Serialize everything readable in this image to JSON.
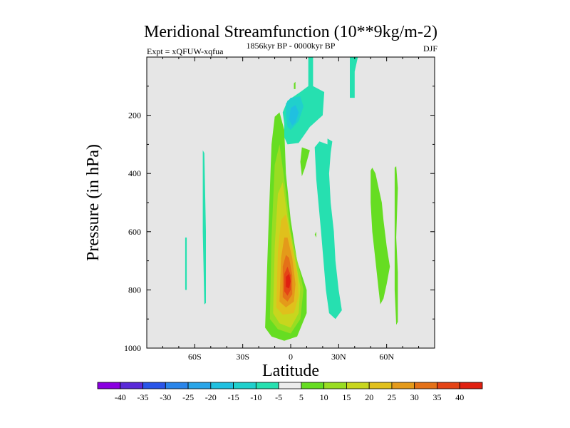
{
  "chart_data": {
    "type": "contour",
    "title": "Meridional Streamfunction (10**9kg/m-2)",
    "subtitle_left": "Expt = xQFUW-xqfua",
    "subtitle_center": "1856kyr BP - 0000kyr BP",
    "subtitle_right": "DJF",
    "xlabel": "Latitude",
    "ylabel": "Pressure (in hPa)",
    "xlim": [
      -90,
      90
    ],
    "ylim": [
      1000,
      0
    ],
    "xticks": [
      {
        "value": -60,
        "label": "60S"
      },
      {
        "value": -30,
        "label": "30S"
      },
      {
        "value": 0,
        "label": "0"
      },
      {
        "value": 30,
        "label": "30N"
      },
      {
        "value": 60,
        "label": "60N"
      }
    ],
    "yticks": [
      {
        "value": 200,
        "label": "200"
      },
      {
        "value": 400,
        "label": "400"
      },
      {
        "value": 600,
        "label": "600"
      },
      {
        "value": 800,
        "label": "800"
      },
      {
        "value": 1000,
        "label": "1000"
      }
    ],
    "background_color": "#e6e6e6",
    "colorbar": {
      "labels": [
        "-40",
        "-35",
        "-30",
        "-25",
        "-20",
        "-15",
        "-10",
        "-5",
        "5",
        "10",
        "15",
        "20",
        "25",
        "30",
        "35",
        "40"
      ],
      "colors": [
        "#8a00e0",
        "#5a2ad8",
        "#2a55e8",
        "#2a85ea",
        "#2aa5e8",
        "#20c0e0",
        "#20d0cc",
        "#26e0b0",
        "#ececec",
        "#66dd22",
        "#99dd22",
        "#c8d61e",
        "#e0c01c",
        "#e49a1a",
        "#e47118",
        "#e44416",
        "#e02010"
      ]
    },
    "regions": [
      {
        "name": "positive-tropical-cell",
        "level": 10,
        "color": "#66dd22",
        "polygon": [
          [
            -16,
            930
          ],
          [
            -14,
            600
          ],
          [
            -12,
            300
          ],
          [
            -10,
            205
          ],
          [
            -7,
            190
          ],
          [
            -4,
            250
          ],
          [
            -3,
            400
          ],
          [
            0,
            560
          ],
          [
            4,
            700
          ],
          [
            10,
            800
          ],
          [
            10,
            880
          ],
          [
            4,
            960
          ],
          [
            -4,
            975
          ],
          [
            -12,
            960
          ]
        ]
      },
      {
        "name": "positive-tropical-cell",
        "level": 15,
        "color": "#99dd22",
        "polygon": [
          [
            -13,
            900
          ],
          [
            -12,
            620
          ],
          [
            -10,
            370
          ],
          [
            -7,
            300
          ],
          [
            -4,
            420
          ],
          [
            0,
            600
          ],
          [
            5,
            720
          ],
          [
            8,
            800
          ],
          [
            6,
            900
          ],
          [
            0,
            950
          ],
          [
            -8,
            935
          ]
        ]
      },
      {
        "name": "positive-tropical-cell",
        "level": 20,
        "color": "#c8d61e",
        "polygon": [
          [
            -11,
            880
          ],
          [
            -10,
            650
          ],
          [
            -8,
            470
          ],
          [
            -5,
            430
          ],
          [
            -2,
            550
          ],
          [
            3,
            700
          ],
          [
            6,
            790
          ],
          [
            5,
            880
          ],
          [
            0,
            930
          ],
          [
            -7,
            915
          ]
        ]
      },
      {
        "name": "positive-tropical-cell",
        "level": 25,
        "color": "#e0c01c",
        "polygon": [
          [
            -9,
            860
          ],
          [
            -8,
            670
          ],
          [
            -6,
            560
          ],
          [
            -3,
            540
          ],
          [
            0,
            630
          ],
          [
            4,
            740
          ],
          [
            5,
            820
          ],
          [
            2,
            880
          ],
          [
            -5,
            885
          ]
        ]
      },
      {
        "name": "positive-tropical-cell",
        "level": 30,
        "color": "#e49a1a",
        "polygon": [
          [
            -7,
            840
          ],
          [
            -6,
            690
          ],
          [
            -4,
            620
          ],
          [
            -2,
            620
          ],
          [
            1,
            690
          ],
          [
            3,
            780
          ],
          [
            2,
            840
          ],
          [
            -3,
            860
          ]
        ]
      },
      {
        "name": "positive-tropical-cell",
        "level": 35,
        "color": "#e47118",
        "polygon": [
          [
            -5,
            825
          ],
          [
            -5,
            720
          ],
          [
            -3,
            680
          ],
          [
            -1,
            690
          ],
          [
            1,
            750
          ],
          [
            1,
            815
          ],
          [
            -2,
            840
          ]
        ]
      },
      {
        "name": "positive-tropical-cell",
        "level": 40,
        "color": "#e44416",
        "polygon": [
          [
            -4,
            805
          ],
          [
            -4,
            745
          ],
          [
            -2,
            720
          ],
          [
            0,
            750
          ],
          [
            0,
            800
          ],
          [
            -2,
            820
          ]
        ]
      },
      {
        "name": "positive-tropical-core",
        "level": 45,
        "color": "#e02010",
        "polygon": [
          [
            -3,
            790
          ],
          [
            -3,
            755
          ],
          [
            -1,
            745
          ],
          [
            0,
            770
          ],
          [
            -1,
            795
          ]
        ]
      },
      {
        "name": "negative-cell",
        "level": -5,
        "color": "#26e0b0",
        "polygon": [
          [
            -66,
            620
          ],
          [
            -65,
            620
          ],
          [
            -65,
            800
          ],
          [
            -66,
            800
          ]
        ]
      },
      {
        "name": "negative-cell",
        "level": -5,
        "color": "#26e0b0",
        "polygon": [
          [
            -55,
            320
          ],
          [
            -54,
            330
          ],
          [
            -53,
            600
          ],
          [
            -53,
            845
          ],
          [
            -54,
            850
          ],
          [
            -55,
            600
          ]
        ]
      },
      {
        "name": "negative-cell",
        "level": -5,
        "color": "#26e0b0",
        "polygon": [
          [
            11,
            0
          ],
          [
            14,
            0
          ],
          [
            14,
            100
          ],
          [
            21,
            120
          ],
          [
            20,
            200
          ],
          [
            12,
            240
          ],
          [
            5,
            295
          ],
          [
            -2,
            300
          ],
          [
            -4,
            275
          ],
          [
            -4,
            230
          ],
          [
            -5,
            190
          ],
          [
            -2,
            150
          ],
          [
            6,
            120
          ],
          [
            11,
            100
          ]
        ]
      },
      {
        "name": "negative-cell",
        "level": -10,
        "color": "#20d0cc",
        "polygon": [
          [
            -3,
            200
          ],
          [
            -3,
            160
          ],
          [
            0,
            140
          ],
          [
            6,
            135
          ],
          [
            8,
            170
          ],
          [
            5,
            220
          ],
          [
            0,
            250
          ],
          [
            -2,
            240
          ]
        ]
      },
      {
        "name": "negative-cell",
        "level": -15,
        "color": "#20c0e0",
        "polygon": [
          [
            -1,
            215
          ],
          [
            0,
            175
          ],
          [
            3,
            165
          ],
          [
            5,
            190
          ],
          [
            3,
            225
          ],
          [
            1,
            235
          ]
        ]
      },
      {
        "name": "negative-cell",
        "level": -5,
        "color": "#26e0b0",
        "polygon": [
          [
            37,
            0
          ],
          [
            42,
            0
          ],
          [
            40,
            50
          ],
          [
            40,
            140
          ],
          [
            37,
            140
          ],
          [
            37,
            60
          ]
        ]
      },
      {
        "name": "negative-cell",
        "level": -5,
        "color": "#26e0b0",
        "polygon": [
          [
            23,
            280
          ],
          [
            26,
            290
          ],
          [
            25,
            330
          ],
          [
            24,
            400
          ],
          [
            25,
            500
          ],
          [
            27,
            600
          ],
          [
            28,
            700
          ],
          [
            30,
            800
          ],
          [
            32,
            870
          ],
          [
            28,
            900
          ],
          [
            24,
            880
          ],
          [
            22,
            800
          ],
          [
            19,
            600
          ],
          [
            16,
            420
          ],
          [
            15,
            310
          ],
          [
            18,
            290
          ],
          [
            23,
            300
          ]
        ]
      },
      {
        "name": "positive-cell",
        "level": 10,
        "color": "#66dd22",
        "polygon": [
          [
            7,
            310
          ],
          [
            12,
            320
          ],
          [
            9,
            380
          ],
          [
            7,
            410
          ],
          [
            6,
            360
          ]
        ]
      },
      {
        "name": "positive-cell",
        "level": 10,
        "color": "#66dd22",
        "polygon": [
          [
            2,
            90
          ],
          [
            3,
            85
          ],
          [
            3,
            110
          ],
          [
            2,
            110
          ]
        ]
      },
      {
        "name": "positive-cell",
        "level": 10,
        "color": "#66dd22",
        "polygon": [
          [
            16,
            600
          ],
          [
            16,
            620
          ],
          [
            15,
            610
          ]
        ]
      },
      {
        "name": "positive-cell",
        "level": 10,
        "color": "#66dd22",
        "polygon": [
          [
            50,
            390
          ],
          [
            51,
            380
          ],
          [
            53,
            400
          ],
          [
            55,
            450
          ],
          [
            57,
            500
          ],
          [
            58,
            560
          ],
          [
            60,
            650
          ],
          [
            62,
            720
          ],
          [
            60,
            780
          ],
          [
            58,
            830
          ],
          [
            56,
            850
          ],
          [
            55,
            800
          ],
          [
            53,
            700
          ],
          [
            51,
            600
          ],
          [
            50,
            500
          ]
        ]
      },
      {
        "name": "positive-cell",
        "level": 10,
        "color": "#66dd22",
        "polygon": [
          [
            65,
            380
          ],
          [
            66,
            375
          ],
          [
            67,
            450
          ],
          [
            66,
            620
          ],
          [
            67,
            740
          ],
          [
            67,
            910
          ],
          [
            66,
            920
          ],
          [
            65,
            800
          ],
          [
            65,
            600
          ]
        ]
      }
    ]
  }
}
